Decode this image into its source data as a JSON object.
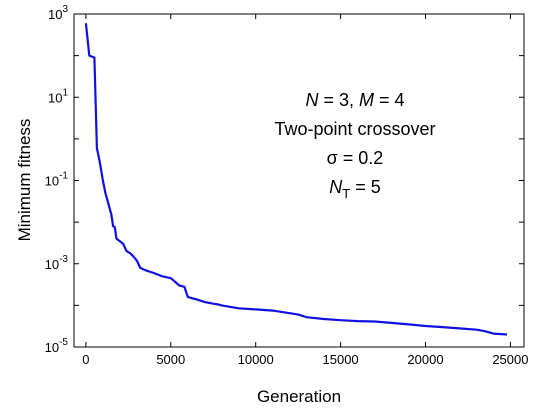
{
  "chart_data": {
    "type": "line",
    "xlabel": "Generation",
    "ylabel": "Minimum fitness",
    "xlim": [
      -700,
      25800
    ],
    "ylim": [
      1e-05,
      1000
    ],
    "yscale": "log",
    "x_ticks": [
      0,
      5000,
      10000,
      15000,
      20000,
      25000
    ],
    "y_ticks": [
      {
        "value": 1e-05,
        "base": "10",
        "exp": "-5"
      },
      {
        "value": 0.001,
        "base": "10",
        "exp": "-3"
      },
      {
        "value": 0.1,
        "base": "10",
        "exp": "-1"
      },
      {
        "value": 10,
        "base": "10",
        "exp": "1"
      },
      {
        "value": 1000,
        "base": "10",
        "exp": "3"
      }
    ],
    "grid": false,
    "line_color": "#1010e0",
    "series": [
      {
        "x": [
          0,
          200,
          350,
          500,
          650,
          800,
          1000,
          1150,
          1300,
          1500,
          1600,
          1700,
          1800,
          2000,
          2200,
          2400,
          2600,
          2800,
          3000,
          3200,
          3500,
          4000,
          4500,
          5000,
          5500,
          5800,
          6000,
          6200,
          6500,
          7000,
          7500,
          7800,
          8000,
          9000,
          10000,
          11000,
          12000,
          12500,
          13000,
          14000,
          15000,
          16000,
          17000,
          18000,
          19000,
          20000,
          21000,
          22000,
          23000,
          23500,
          24000,
          24800
        ],
        "y": [
          600,
          100,
          95,
          90,
          0.6,
          0.3,
          0.1,
          0.05,
          0.03,
          0.015,
          0.008,
          0.0075,
          0.004,
          0.0035,
          0.003,
          0.002,
          0.0018,
          0.0015,
          0.0012,
          0.0008,
          0.0007,
          0.0006,
          0.0005,
          0.00045,
          0.0003,
          0.00028,
          0.00016,
          0.00015,
          0.00014,
          0.00012,
          0.00011,
          0.000105,
          0.0001,
          8.5e-05,
          8e-05,
          7.5e-05,
          6.5e-05,
          6e-05,
          5.2e-05,
          4.7e-05,
          4.4e-05,
          4.2e-05,
          4.1e-05,
          3.8e-05,
          3.5e-05,
          3.2e-05,
          3e-05,
          2.8e-05,
          2.6e-05,
          2.4e-05,
          2.1e-05,
          2e-05
        ]
      }
    ],
    "annotations": [
      {
        "id": "params",
        "parts": [
          {
            "t": "N",
            "italic": true
          },
          {
            "t": " = 3, "
          },
          {
            "t": "M",
            "italic": true
          },
          {
            "t": " = 4"
          }
        ]
      },
      {
        "id": "method",
        "parts": [
          {
            "t": "Two-point crossover"
          }
        ]
      },
      {
        "id": "sigma",
        "parts": [
          {
            "t": "σ = 0.2"
          }
        ]
      },
      {
        "id": "nt",
        "parts": [
          {
            "t": "N",
            "italic": true
          },
          {
            "t": "T",
            "sub": true
          },
          {
            "t": " = 5"
          }
        ]
      }
    ]
  }
}
